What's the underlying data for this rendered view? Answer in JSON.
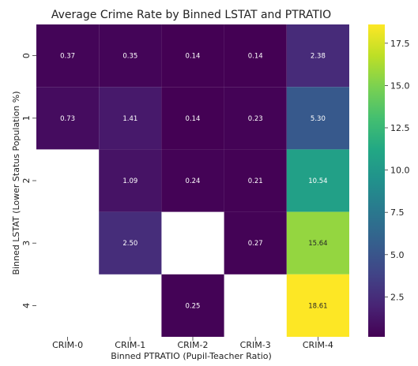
{
  "chart_data": {
    "type": "heatmap",
    "title": "Average Crime Rate by Binned LSTAT and PTRATIO",
    "xlabel": "Binned PTRATIO (Pupil-Teacher Ratio)",
    "ylabel": "Binned LSTAT (Lower Status Population %)",
    "x_categories": [
      "CRIM-0",
      "CRIM-1",
      "CRIM-2",
      "CRIM-3",
      "CRIM-4"
    ],
    "y_categories": [
      "0",
      "1",
      "2",
      "3",
      "4"
    ],
    "values": [
      [
        0.37,
        0.35,
        0.14,
        0.14,
        2.38
      ],
      [
        0.73,
        1.41,
        0.14,
        0.23,
        5.3
      ],
      [
        null,
        1.09,
        0.24,
        0.21,
        10.54
      ],
      [
        null,
        2.5,
        null,
        0.27,
        15.64
      ],
      [
        null,
        null,
        0.25,
        null,
        18.61
      ]
    ],
    "cell_labels": [
      [
        "0.37",
        "0.35",
        "0.14",
        "0.14",
        "2.38"
      ],
      [
        "0.73",
        "1.41",
        "0.14",
        "0.23",
        "5.30"
      ],
      [
        "",
        "1.09",
        "0.24",
        "0.21",
        "10.54"
      ],
      [
        "",
        "2.50",
        "",
        "0.27",
        "15.64"
      ],
      [
        "",
        "",
        "0.25",
        "",
        "18.61"
      ]
    ],
    "colormap": "viridis",
    "color_range": [
      0.14,
      18.61
    ],
    "colorbar_ticks": [
      2.5,
      5.0,
      7.5,
      10.0,
      12.5,
      15.0,
      17.5
    ],
    "colorbar_tick_labels": [
      "2.5",
      "5.0",
      "7.5",
      "10.0",
      "12.5",
      "15.0",
      "17.5"
    ]
  }
}
